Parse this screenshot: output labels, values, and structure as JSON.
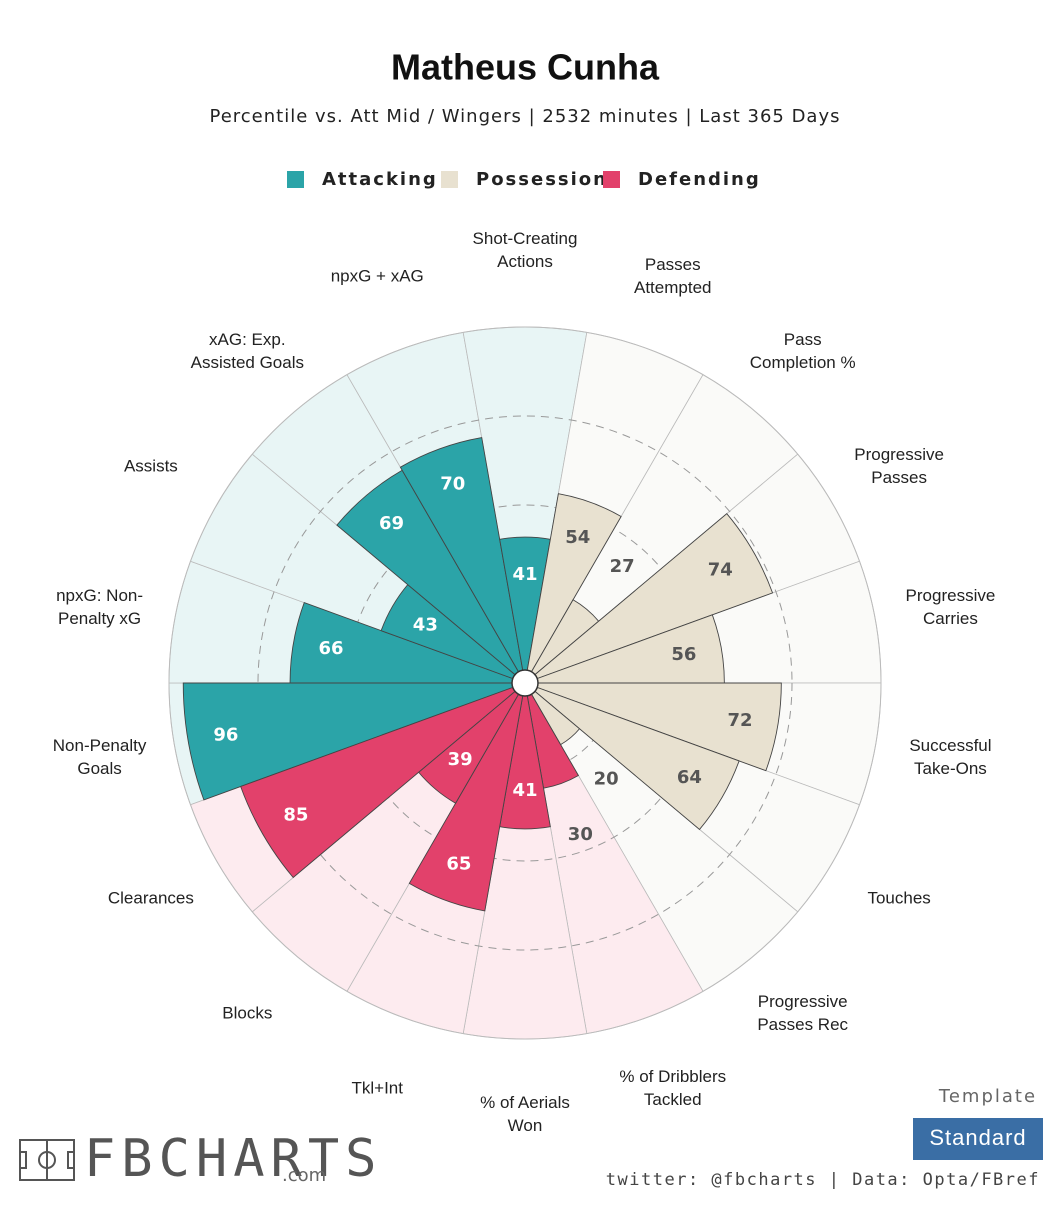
{
  "chart_data": {
    "type": "pizza",
    "title": "Matheus Cunha",
    "subtitle": "Percentile vs. Att Mid / Wingers | 2532 minutes | Last 365 Days",
    "rlim": [
      0,
      100
    ],
    "rticks": [
      25,
      50,
      75
    ],
    "series": [
      {
        "name": "Attacking",
        "color": "#2ba4a8",
        "background": "#e8f5f5",
        "categories": [
          [
            "Non-Penalty",
            "Goals"
          ],
          [
            "npxG: Non-",
            "Penalty xG"
          ],
          [
            "Assists"
          ],
          [
            "xAG: Exp.",
            "Assisted Goals"
          ],
          [
            "npxG + xAG"
          ],
          [
            "Shot-Creating",
            "Actions"
          ]
        ],
        "values": [
          96,
          66,
          43,
          69,
          70,
          41
        ]
      },
      {
        "name": "Possession",
        "color": "#e8e1d0",
        "background": "#fafaf8",
        "categories": [
          [
            "Passes",
            "Attempted"
          ],
          [
            "Pass",
            "Completion %"
          ],
          [
            "Progressive",
            "Passes"
          ],
          [
            "Progressive",
            "Carries"
          ],
          [
            "Successful",
            "Take-Ons"
          ],
          [
            "Touches"
          ],
          [
            "Progressive",
            "Passes Rec"
          ]
        ],
        "values": [
          54,
          27,
          74,
          56,
          72,
          64,
          20
        ]
      },
      {
        "name": "Defending",
        "color": "#e2416b",
        "background": "#fdebef",
        "categories": [
          [
            "% of Dribblers",
            "Tackled"
          ],
          [
            "% of Aerials",
            "Won"
          ],
          [
            "Tkl+Int"
          ],
          [
            "Blocks"
          ],
          [
            "Clearances"
          ]
        ],
        "values": [
          30,
          41,
          65,
          39,
          85
        ]
      }
    ],
    "template_label": "Template",
    "template": "Standard",
    "brand": "FBCHARTS",
    "brand_suffix": ".com",
    "footer": "twitter: @fbcharts | Data: Opta/FBref"
  }
}
